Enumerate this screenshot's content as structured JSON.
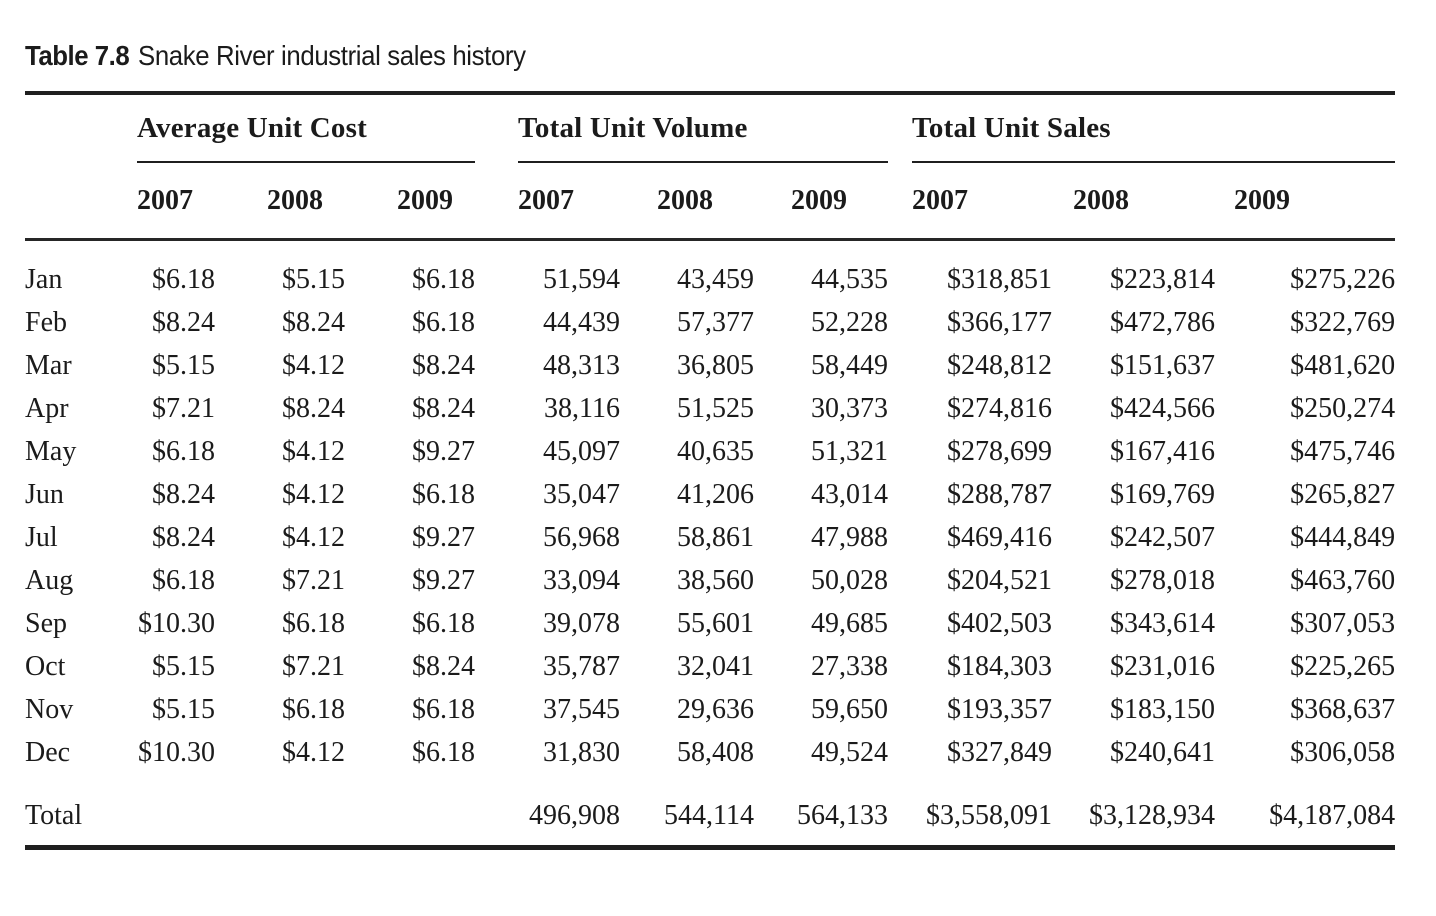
{
  "caption": {
    "label": "Table 7.8",
    "title": "Snake River industrial sales history"
  },
  "table": {
    "groups": [
      {
        "label": "Average Unit Cost"
      },
      {
        "label": "Total Unit Volume"
      },
      {
        "label": "Total Unit Sales"
      }
    ],
    "years": [
      "2007",
      "2008",
      "2009"
    ],
    "rows": [
      {
        "month": "Jan",
        "cost": [
          "$6.18",
          "$5.15",
          "$6.18"
        ],
        "volume": [
          "51,594",
          "43,459",
          "44,535"
        ],
        "sales": [
          "$318,851",
          "$223,814",
          "$275,226"
        ]
      },
      {
        "month": "Feb",
        "cost": [
          "$8.24",
          "$8.24",
          "$6.18"
        ],
        "volume": [
          "44,439",
          "57,377",
          "52,228"
        ],
        "sales": [
          "$366,177",
          "$472,786",
          "$322,769"
        ]
      },
      {
        "month": "Mar",
        "cost": [
          "$5.15",
          "$4.12",
          "$8.24"
        ],
        "volume": [
          "48,313",
          "36,805",
          "58,449"
        ],
        "sales": [
          "$248,812",
          "$151,637",
          "$481,620"
        ]
      },
      {
        "month": "Apr",
        "cost": [
          "$7.21",
          "$8.24",
          "$8.24"
        ],
        "volume": [
          "38,116",
          "51,525",
          "30,373"
        ],
        "sales": [
          "$274,816",
          "$424,566",
          "$250,274"
        ]
      },
      {
        "month": "May",
        "cost": [
          "$6.18",
          "$4.12",
          "$9.27"
        ],
        "volume": [
          "45,097",
          "40,635",
          "51,321"
        ],
        "sales": [
          "$278,699",
          "$167,416",
          "$475,746"
        ]
      },
      {
        "month": "Jun",
        "cost": [
          "$8.24",
          "$4.12",
          "$6.18"
        ],
        "volume": [
          "35,047",
          "41,206",
          "43,014"
        ],
        "sales": [
          "$288,787",
          "$169,769",
          "$265,827"
        ]
      },
      {
        "month": "Jul",
        "cost": [
          "$8.24",
          "$4.12",
          "$9.27"
        ],
        "volume": [
          "56,968",
          "58,861",
          "47,988"
        ],
        "sales": [
          "$469,416",
          "$242,507",
          "$444,849"
        ]
      },
      {
        "month": "Aug",
        "cost": [
          "$6.18",
          "$7.21",
          "$9.27"
        ],
        "volume": [
          "33,094",
          "38,560",
          "50,028"
        ],
        "sales": [
          "$204,521",
          "$278,018",
          "$463,760"
        ]
      },
      {
        "month": "Sep",
        "cost": [
          "$10.30",
          "$6.18",
          "$6.18"
        ],
        "volume": [
          "39,078",
          "55,601",
          "49,685"
        ],
        "sales": [
          "$402,503",
          "$343,614",
          "$307,053"
        ]
      },
      {
        "month": "Oct",
        "cost": [
          "$5.15",
          "$7.21",
          "$8.24"
        ],
        "volume": [
          "35,787",
          "32,041",
          "27,338"
        ],
        "sales": [
          "$184,303",
          "$231,016",
          "$225,265"
        ]
      },
      {
        "month": "Nov",
        "cost": [
          "$5.15",
          "$6.18",
          "$6.18"
        ],
        "volume": [
          "37,545",
          "29,636",
          "59,650"
        ],
        "sales": [
          "$193,357",
          "$183,150",
          "$368,637"
        ]
      },
      {
        "month": "Dec",
        "cost": [
          "$10.30",
          "$4.12",
          "$6.18"
        ],
        "volume": [
          "31,830",
          "58,408",
          "49,524"
        ],
        "sales": [
          "$327,849",
          "$240,641",
          "$306,058"
        ]
      }
    ],
    "total_row": {
      "label": "Total",
      "cost": [
        "",
        "",
        ""
      ],
      "volume": [
        "496,908",
        "544,114",
        "564,133"
      ],
      "sales": [
        "$3,558,091",
        "$3,128,934",
        "$4,187,084"
      ]
    }
  }
}
